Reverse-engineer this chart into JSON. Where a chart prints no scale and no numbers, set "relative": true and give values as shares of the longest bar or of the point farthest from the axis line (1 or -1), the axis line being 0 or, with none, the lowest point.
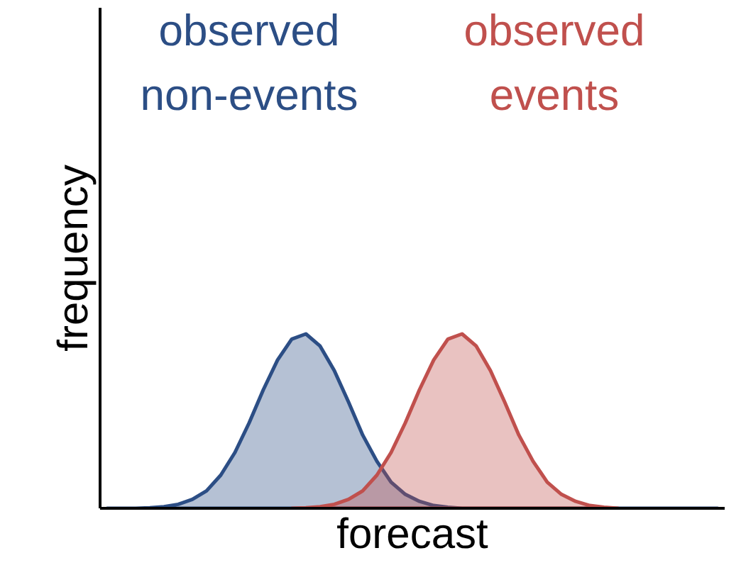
{
  "chart_data": {
    "type": "area",
    "relative": true,
    "xlabel": "forecast",
    "ylabel": "frequency",
    "categories": [
      null,
      null,
      null,
      null,
      null,
      null,
      null,
      null,
      null,
      null,
      null,
      null,
      null,
      null,
      null,
      null,
      null,
      null,
      null,
      null,
      null,
      null,
      null,
      null,
      null,
      null,
      null,
      null,
      null,
      null,
      null,
      null,
      null,
      null,
      null,
      null,
      null,
      null,
      null,
      null,
      null,
      null,
      null,
      null
    ],
    "series": [
      {
        "name": "observed non-events",
        "color": "#2c4e85",
        "values": [
          0,
          0,
          0,
          0.003,
          0.009,
          0.023,
          0.051,
          0.1,
          0.19,
          0.32,
          0.49,
          0.68,
          0.85,
          0.97,
          1.0,
          0.93,
          0.79,
          0.61,
          0.42,
          0.27,
          0.15,
          0.08,
          0.04,
          0.016,
          0.006,
          0,
          0,
          0,
          0,
          0,
          0,
          0,
          0,
          0,
          0,
          0,
          0,
          0,
          0,
          0,
          0,
          0,
          0,
          0
        ]
      },
      {
        "name": "observed events",
        "color": "#c0504d",
        "values": [
          null,
          null,
          null,
          null,
          null,
          null,
          null,
          null,
          null,
          null,
          null,
          null,
          null,
          0,
          0.003,
          0.009,
          0.023,
          0.051,
          0.1,
          0.19,
          0.32,
          0.49,
          0.68,
          0.85,
          0.97,
          1.0,
          0.93,
          0.79,
          0.61,
          0.42,
          0.27,
          0.15,
          0.08,
          0.04,
          0.016,
          0.006,
          0,
          null,
          null,
          null,
          null,
          null,
          null,
          null
        ]
      }
    ]
  }
}
